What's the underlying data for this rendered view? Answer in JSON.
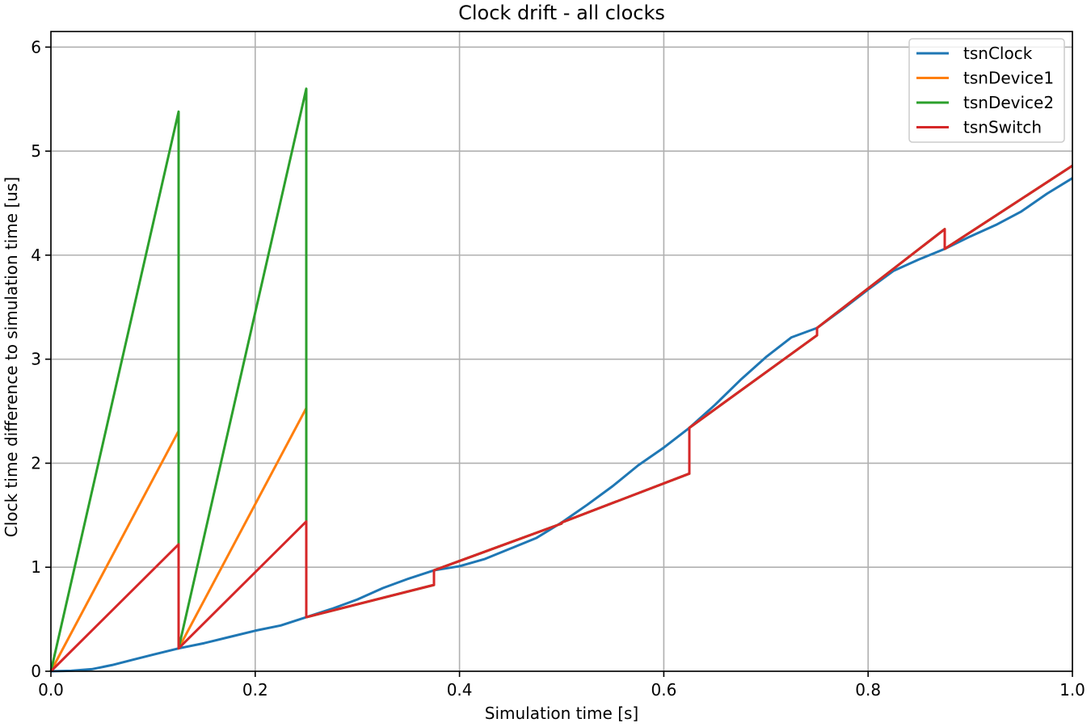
{
  "chart_data": {
    "type": "line",
    "title": "Clock drift - all clocks",
    "xlabel": "Simulation time [s]",
    "ylabel": "Clock time difference to simulation time [us]",
    "xlim": [
      0,
      1
    ],
    "ylim": [
      0,
      6.15
    ],
    "xticks": [
      0.0,
      0.2,
      0.4,
      0.6,
      0.8,
      1.0
    ],
    "xtick_labels": [
      "0.0",
      "0.2",
      "0.4",
      "0.6",
      "0.8",
      "1.0"
    ],
    "yticks": [
      0,
      1,
      2,
      3,
      4,
      5,
      6
    ],
    "ytick_labels": [
      "0",
      "1",
      "2",
      "3",
      "4",
      "5",
      "6"
    ],
    "grid": true,
    "legend_position": "top-right",
    "series": [
      {
        "name": "tsnClock",
        "color": "#1f77b4",
        "points": [
          [
            0,
            0
          ],
          [
            0.02,
            0.005
          ],
          [
            0.04,
            0.02
          ],
          [
            0.06,
            0.06
          ],
          [
            0.08,
            0.11
          ],
          [
            0.1,
            0.16
          ],
          [
            0.125,
            0.22
          ],
          [
            0.15,
            0.27
          ],
          [
            0.175,
            0.33
          ],
          [
            0.2,
            0.39
          ],
          [
            0.225,
            0.44
          ],
          [
            0.25,
            0.52
          ],
          [
            0.275,
            0.6
          ],
          [
            0.3,
            0.69
          ],
          [
            0.325,
            0.8
          ],
          [
            0.35,
            0.89
          ],
          [
            0.375,
            0.97
          ],
          [
            0.4,
            1.01
          ],
          [
            0.425,
            1.08
          ],
          [
            0.45,
            1.18
          ],
          [
            0.475,
            1.28
          ],
          [
            0.5,
            1.43
          ],
          [
            0.525,
            1.6
          ],
          [
            0.55,
            1.78
          ],
          [
            0.575,
            1.98
          ],
          [
            0.6,
            2.15
          ],
          [
            0.625,
            2.34
          ],
          [
            0.65,
            2.56
          ],
          [
            0.675,
            2.8
          ],
          [
            0.7,
            3.02
          ],
          [
            0.725,
            3.21
          ],
          [
            0.75,
            3.3
          ],
          [
            0.775,
            3.48
          ],
          [
            0.8,
            3.67
          ],
          [
            0.825,
            3.85
          ],
          [
            0.85,
            3.96
          ],
          [
            0.875,
            4.06
          ],
          [
            0.9,
            4.18
          ],
          [
            0.925,
            4.29
          ],
          [
            0.95,
            4.42
          ],
          [
            0.975,
            4.59
          ],
          [
            1.0,
            4.74
          ]
        ]
      },
      {
        "name": "tsnDevice1",
        "color": "#ff7f0e",
        "points": [
          [
            0,
            0
          ],
          [
            0.125,
            2.31
          ],
          [
            0.125,
            0.22
          ],
          [
            0.25,
            2.53
          ],
          [
            0.25,
            0.52
          ],
          [
            0.375,
            0.83
          ],
          [
            0.375,
            0.97
          ],
          [
            0.5,
            1.42
          ],
          [
            0.5,
            1.43
          ],
          [
            0.625,
            1.9
          ],
          [
            0.625,
            2.34
          ],
          [
            0.75,
            3.23
          ],
          [
            0.75,
            3.3
          ],
          [
            0.875,
            4.25
          ],
          [
            0.875,
            4.06
          ],
          [
            1.0,
            4.86
          ]
        ]
      },
      {
        "name": "tsnDevice2",
        "color": "#2ca02c",
        "points": [
          [
            0,
            0
          ],
          [
            0.125,
            5.38
          ],
          [
            0.125,
            0.22
          ],
          [
            0.25,
            5.6
          ],
          [
            0.25,
            0.52
          ],
          [
            0.375,
            0.83
          ],
          [
            0.375,
            0.97
          ],
          [
            0.5,
            1.42
          ],
          [
            0.5,
            1.43
          ],
          [
            0.625,
            1.9
          ],
          [
            0.625,
            2.34
          ],
          [
            0.75,
            3.23
          ],
          [
            0.75,
            3.3
          ],
          [
            0.875,
            4.25
          ],
          [
            0.875,
            4.06
          ],
          [
            1.0,
            4.86
          ]
        ]
      },
      {
        "name": "tsnSwitch",
        "color": "#d62728",
        "points": [
          [
            0,
            0
          ],
          [
            0.125,
            1.22
          ],
          [
            0.125,
            0.22
          ],
          [
            0.25,
            1.44
          ],
          [
            0.25,
            0.52
          ],
          [
            0.375,
            0.83
          ],
          [
            0.375,
            0.97
          ],
          [
            0.5,
            1.42
          ],
          [
            0.5,
            1.43
          ],
          [
            0.625,
            1.9
          ],
          [
            0.625,
            2.34
          ],
          [
            0.75,
            3.23
          ],
          [
            0.75,
            3.3
          ],
          [
            0.875,
            4.25
          ],
          [
            0.875,
            4.06
          ],
          [
            1.0,
            4.86
          ]
        ]
      }
    ]
  }
}
